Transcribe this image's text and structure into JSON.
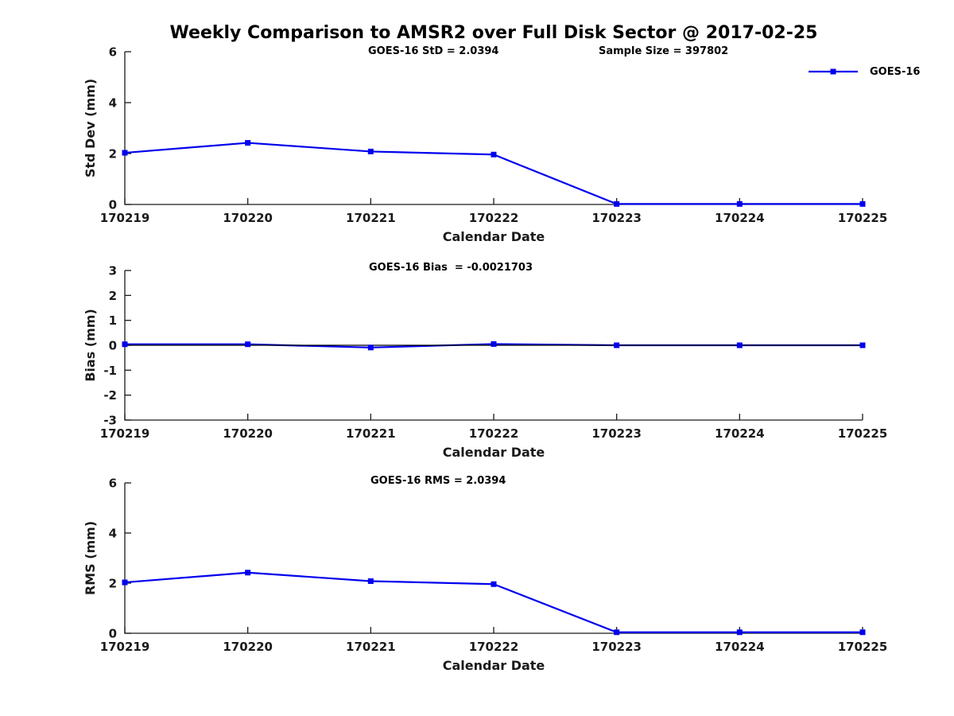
{
  "title": "Weekly Comparison to AMSR2 over Full Disk Sector @ 2017-02-25",
  "legend": {
    "label": "GOES-16",
    "color": "#0000ee"
  },
  "chart_data": [
    {
      "type": "line",
      "title": "GOES-16 StD = 2.0394",
      "annotation": "Sample Size = 397802",
      "categories": [
        "170219",
        "170220",
        "170221",
        "170222",
        "170223",
        "170224",
        "170225"
      ],
      "series": [
        {
          "name": "GOES-16",
          "values": [
            2.03,
            2.42,
            2.08,
            1.96,
            0.02,
            0.02,
            0.02
          ]
        }
      ],
      "xlabel": "Calendar Date",
      "ylabel": "Std Dev (mm)",
      "ylim": [
        0,
        6
      ],
      "yticks": [
        0,
        2,
        4,
        6
      ],
      "line_color": "#0000ee",
      "marker": "filled-square",
      "zero_line": false,
      "grid": false,
      "legend_position": "top-right-outside"
    },
    {
      "type": "line",
      "title": "GOES-16 Bias  = -0.0021703",
      "annotation": "",
      "categories": [
        "170219",
        "170220",
        "170221",
        "170222",
        "170223",
        "170224",
        "170225"
      ],
      "series": [
        {
          "name": "GOES-16",
          "values": [
            0.04,
            0.04,
            -0.09,
            0.05,
            0.0,
            0.0,
            0.0
          ]
        }
      ],
      "xlabel": "Calendar Date",
      "ylabel": "Bias (mm)",
      "ylim": [
        -3,
        3
      ],
      "yticks": [
        -3,
        -2,
        -1,
        0,
        1,
        2,
        3
      ],
      "line_color": "#0000ee",
      "marker": "filled-square",
      "zero_line": true,
      "grid": false
    },
    {
      "type": "line",
      "title": "GOES-16 RMS = 2.0394",
      "annotation": "",
      "categories": [
        "170219",
        "170220",
        "170221",
        "170222",
        "170223",
        "170224",
        "170225"
      ],
      "series": [
        {
          "name": "GOES-16",
          "values": [
            2.03,
            2.42,
            2.08,
            1.96,
            0.04,
            0.04,
            0.04
          ]
        }
      ],
      "xlabel": "Calendar Date",
      "ylabel": "RMS (mm)",
      "ylim": [
        0,
        6
      ],
      "yticks": [
        0,
        2,
        4,
        6
      ],
      "line_color": "#0000ee",
      "marker": "filled-square",
      "zero_line": false,
      "grid": false
    }
  ]
}
